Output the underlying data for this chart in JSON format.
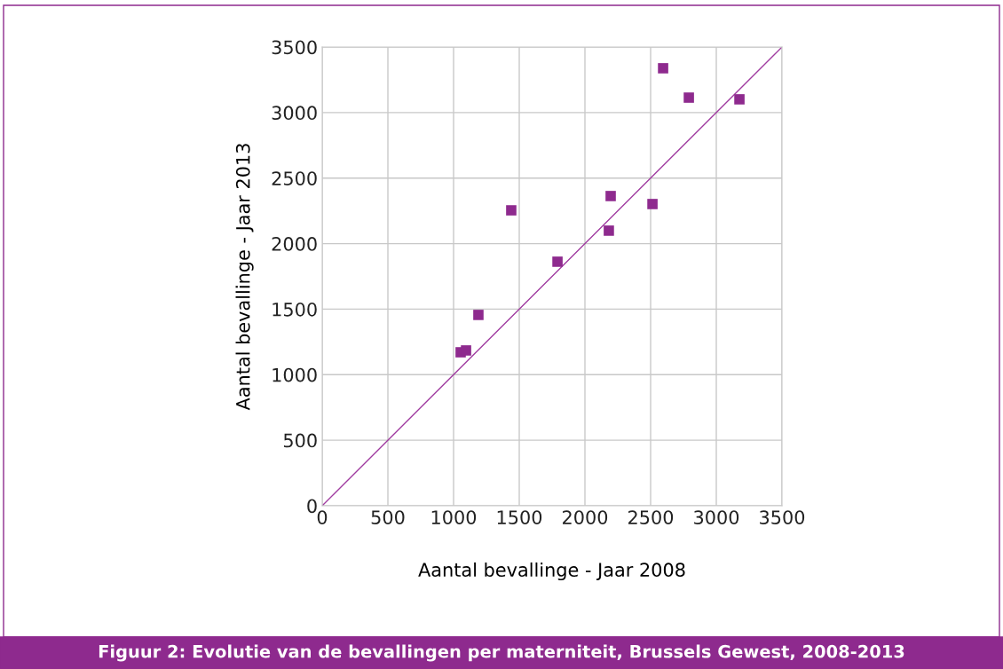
{
  "chart_data": {
    "type": "scatter",
    "title": "Figuur 2: Evolutie van de bevallingen per materniteit, Brussels Gewest, 2008-2013",
    "xlabel": "Aantal bevallinge - Jaar 2008",
    "ylabel": "Aantal bevallinge - Jaar 2013",
    "series": [
      {
        "color": "#8e2a8e",
        "marker": "square",
        "x": [
          1054,
          1095,
          1189,
          1439,
          1791,
          2182,
          2196,
          2514,
          2595,
          2791,
          3176
        ],
        "values": [
          1171,
          1185,
          1456,
          2254,
          1862,
          2099,
          2363,
          2302,
          3338,
          3114,
          3101
        ]
      },
      {
        "type": "line",
        "color": "#a03ca0",
        "marker": "none",
        "line_style": "solid",
        "x": [
          0,
          3500
        ],
        "values": [
          0,
          3500
        ]
      }
    ],
    "xlim": [
      0,
      3500
    ],
    "ylim": [
      0,
      3500
    ],
    "xticks": [
      0,
      500,
      1000,
      1500,
      2000,
      2500,
      3000,
      3500
    ],
    "yticks": [
      0,
      500,
      1000,
      1500,
      2000,
      2500,
      3000,
      3500
    ],
    "grid": true
  }
}
